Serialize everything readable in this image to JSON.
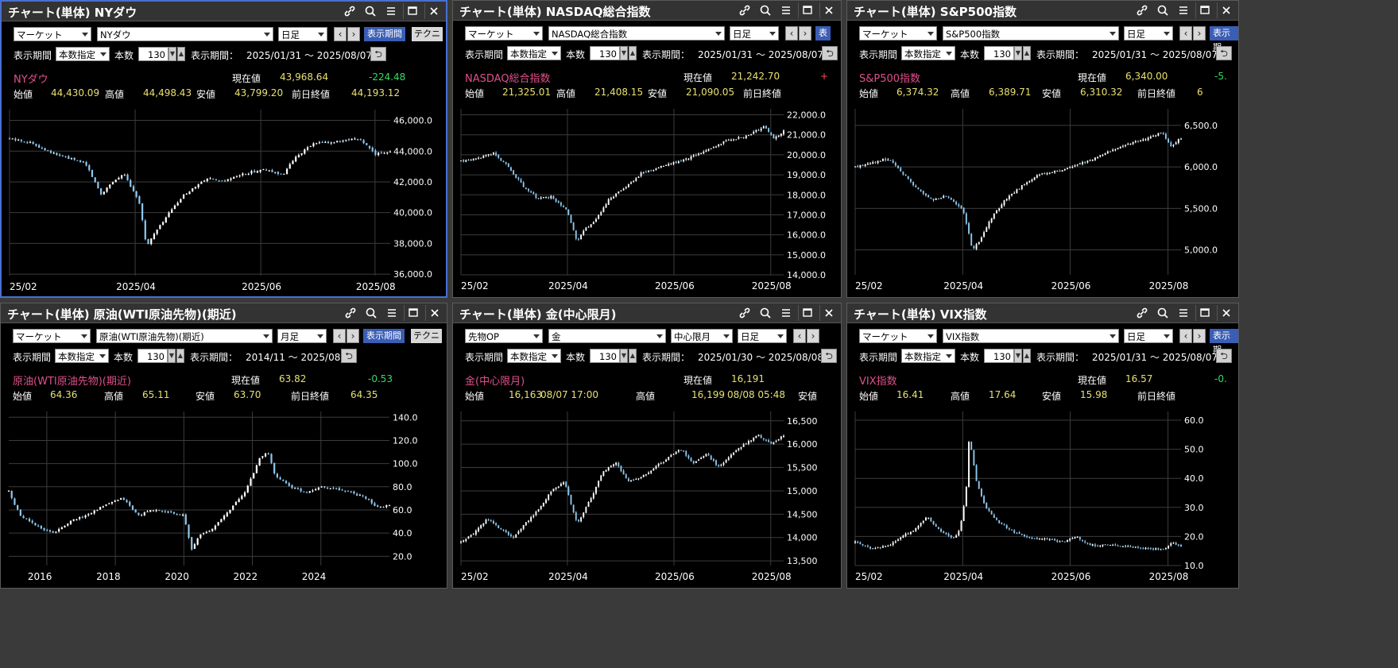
{
  "panels": [
    {
      "id": "p1",
      "title": "チャート(単体) NYダウ",
      "market": "マーケット",
      "symbol": "NYダウ",
      "period": "日足",
      "display_button": "表示期間",
      "tech_button": "テクニ",
      "period_label": "表示期間",
      "mode": "本数指定",
      "count_label": "本数",
      "count": "130",
      "range_label": "表示期間：",
      "range": "2025/01/31 ～ 2025/08/07",
      "name": "NYダウ",
      "current_label": "現在値",
      "current": "43,968.64",
      "change": "-224.48",
      "change_color": "#33dd66",
      "open_label": "始値",
      "open": "44,430.09",
      "high_label": "高値",
      "high": "44,498.43",
      "low_label": "安値",
      "low": "43,799.20",
      "prev_label": "前日終値",
      "prev": "44,193.12",
      "chart_data": {
        "type": "candlestick",
        "yticks": [
          "46,000.0",
          "44,000.0",
          "42,000.0",
          "40,000.0",
          "38,000.0",
          "36,000.0"
        ],
        "ytick_values": [
          46000,
          44000,
          42000,
          40000,
          38000,
          36000
        ],
        "ylim": [
          35900,
          46700
        ],
        "xticks": [
          "25/02",
          "2025/04",
          "2025/06",
          "2025/08"
        ],
        "xtick_pos": [
          0,
          0.33,
          0.66,
          0.96
        ],
        "anchors": [
          [
            0,
            44800
          ],
          [
            0.05,
            44600
          ],
          [
            0.12,
            43800
          ],
          [
            0.2,
            43200
          ],
          [
            0.24,
            41200
          ],
          [
            0.27,
            42000
          ],
          [
            0.3,
            42500
          ],
          [
            0.34,
            40800
          ],
          [
            0.36,
            37800
          ],
          [
            0.38,
            38600
          ],
          [
            0.42,
            40000
          ],
          [
            0.46,
            41200
          ],
          [
            0.52,
            42200
          ],
          [
            0.56,
            42000
          ],
          [
            0.6,
            42400
          ],
          [
            0.66,
            42800
          ],
          [
            0.72,
            42500
          ],
          [
            0.75,
            43600
          ],
          [
            0.8,
            44500
          ],
          [
            0.86,
            44600
          ],
          [
            0.92,
            44800
          ],
          [
            0.96,
            43800
          ],
          [
            1,
            44000
          ]
        ]
      }
    },
    {
      "id": "p2",
      "title": "チャート(単体) NASDAQ総合指数",
      "market": "マーケット",
      "symbol": "NASDAQ総合指数",
      "period": "日足",
      "display_button": "表",
      "period_label": "表示期間",
      "mode": "本数指定",
      "count_label": "本数",
      "count": "130",
      "range_label": "表示期間：",
      "range": "2025/01/31 ～ 2025/08/07",
      "name": "NASDAQ総合指数",
      "current_label": "現在値",
      "current": "21,242.70",
      "change": "+",
      "change_color": "#ff5050",
      "open_label": "始値",
      "open": "21,325.01",
      "high_label": "高値",
      "high": "21,408.15",
      "low_label": "安値",
      "low": "21,090.05",
      "prev_label": "前日終値",
      "prev": "",
      "chart_data": {
        "type": "candlestick",
        "yticks": [
          "22,000.0",
          "21,000.0",
          "20,000.0",
          "19,000.0",
          "18,000.0",
          "17,000.0",
          "16,000.0",
          "15,000.0",
          "14,000.0"
        ],
        "ytick_values": [
          22000,
          21000,
          20000,
          19000,
          18000,
          17000,
          16000,
          15000,
          14000
        ],
        "ylim": [
          14000,
          22300
        ],
        "xticks": [
          "25/02",
          "2025/04",
          "2025/06",
          "2025/08"
        ],
        "xtick_pos": [
          0,
          0.33,
          0.66,
          0.96
        ],
        "anchors": [
          [
            0,
            19700
          ],
          [
            0.05,
            19800
          ],
          [
            0.1,
            20100
          ],
          [
            0.14,
            19500
          ],
          [
            0.2,
            18300
          ],
          [
            0.24,
            17800
          ],
          [
            0.28,
            17900
          ],
          [
            0.33,
            17200
          ],
          [
            0.36,
            15600
          ],
          [
            0.38,
            16200
          ],
          [
            0.42,
            16800
          ],
          [
            0.46,
            17800
          ],
          [
            0.52,
            18500
          ],
          [
            0.56,
            19100
          ],
          [
            0.62,
            19400
          ],
          [
            0.7,
            19800
          ],
          [
            0.76,
            20200
          ],
          [
            0.82,
            20700
          ],
          [
            0.88,
            20900
          ],
          [
            0.94,
            21400
          ],
          [
            0.97,
            20800
          ],
          [
            1,
            21200
          ]
        ]
      }
    },
    {
      "id": "p3",
      "title": "チャート(単体) S&P500指数",
      "market": "マーケット",
      "symbol": "S&P500指数",
      "period": "日足",
      "display_button": "表示期",
      "period_label": "表示期間",
      "mode": "本数指定",
      "count_label": "本数",
      "count": "130",
      "range_label": "表示期間：",
      "range": "2025/01/31 ～ 2025/08/07",
      "name": "S&P500指数",
      "current_label": "現在値",
      "current": "6,340.00",
      "change": "-5.",
      "change_color": "#33dd66",
      "open_label": "始値",
      "open": "6,374.32",
      "high_label": "高値",
      "high": "6,389.71",
      "low_label": "安値",
      "low": "6,310.32",
      "prev_label": "前日終値",
      "prev": "6",
      "chart_data": {
        "type": "candlestick",
        "yticks": [
          "6,500.0",
          "6,000.0",
          "5,500.0",
          "5,000.0"
        ],
        "ytick_values": [
          6500,
          6000,
          5500,
          5000
        ],
        "ylim": [
          4700,
          6700
        ],
        "xticks": [
          "25/02",
          "2025/04",
          "2025/06",
          "2025/08"
        ],
        "xtick_pos": [
          0,
          0.33,
          0.66,
          0.96
        ],
        "anchors": [
          [
            0,
            6000
          ],
          [
            0.05,
            6050
          ],
          [
            0.1,
            6100
          ],
          [
            0.14,
            5950
          ],
          [
            0.2,
            5700
          ],
          [
            0.24,
            5600
          ],
          [
            0.28,
            5650
          ],
          [
            0.33,
            5500
          ],
          [
            0.36,
            5000
          ],
          [
            0.38,
            5100
          ],
          [
            0.42,
            5400
          ],
          [
            0.46,
            5600
          ],
          [
            0.52,
            5800
          ],
          [
            0.56,
            5900
          ],
          [
            0.62,
            5950
          ],
          [
            0.7,
            6050
          ],
          [
            0.76,
            6150
          ],
          [
            0.82,
            6250
          ],
          [
            0.9,
            6350
          ],
          [
            0.94,
            6420
          ],
          [
            0.97,
            6250
          ],
          [
            1,
            6350
          ]
        ]
      }
    },
    {
      "id": "p4",
      "title": "チャート(単体) 原油(WTI原油先物)(期近)",
      "market": "マーケット",
      "symbol": "原油(WTI原油先物)(期近)",
      "period": "月足",
      "display_button": "表示期間",
      "tech_button": "テクニ",
      "period_label": "表示期間",
      "mode": "本数指定",
      "count_label": "本数",
      "count": "130",
      "range_label": "表示期間：",
      "range": "2014/11 ～ 2025/08",
      "name": "原油(WTI原油先物)(期近)",
      "current_label": "現在値",
      "current": "63.82",
      "change": "-0.53",
      "change_color": "#33dd66",
      "open_label": "始値",
      "open": "64.36",
      "high_label": "高値",
      "high": "65.11",
      "low_label": "安値",
      "low": "63.70",
      "prev_label": "前日終値",
      "prev": "64.35",
      "chart_data": {
        "type": "candlestick",
        "yticks": [
          "140.0",
          "120.0",
          "100.0",
          "80.0",
          "60.0",
          "40.0",
          "20.0"
        ],
        "ytick_values": [
          140,
          120,
          100,
          80,
          60,
          40,
          20
        ],
        "ylim": [
          12,
          145
        ],
        "xticks": [
          "2016",
          "2018",
          "2020",
          "2022",
          "2024"
        ],
        "xtick_pos": [
          0.1,
          0.28,
          0.46,
          0.64,
          0.82
        ],
        "anchors": [
          [
            0,
            76
          ],
          [
            0.03,
            55
          ],
          [
            0.08,
            45
          ],
          [
            0.12,
            40
          ],
          [
            0.16,
            50
          ],
          [
            0.2,
            55
          ],
          [
            0.26,
            65
          ],
          [
            0.3,
            70
          ],
          [
            0.34,
            55
          ],
          [
            0.38,
            60
          ],
          [
            0.42,
            58
          ],
          [
            0.46,
            55
          ],
          [
            0.48,
            25
          ],
          [
            0.5,
            38
          ],
          [
            0.54,
            45
          ],
          [
            0.58,
            60
          ],
          [
            0.62,
            75
          ],
          [
            0.66,
            105
          ],
          [
            0.68,
            110
          ],
          [
            0.7,
            90
          ],
          [
            0.74,
            80
          ],
          [
            0.78,
            75
          ],
          [
            0.82,
            80
          ],
          [
            0.86,
            78
          ],
          [
            0.9,
            75
          ],
          [
            0.94,
            70
          ],
          [
            0.97,
            62
          ],
          [
            1,
            64
          ]
        ]
      }
    },
    {
      "id": "p5",
      "title": "チャート(単体) 金(中心限月)",
      "market": "先物OP",
      "symbol": "金",
      "contract": "中心限月",
      "period": "日足",
      "period_label": "表示期間",
      "mode": "本数指定",
      "count_label": "本数",
      "count": "130",
      "range_label": "表示期間：",
      "range": "2025/01/30 ～ 2025/08/08",
      "name": "金(中心限月)",
      "current_label": "現在値",
      "current": "16,191",
      "open_label": "始値",
      "open": "16,163",
      "open_time": "08/07 17:00",
      "high_label": "高値",
      "high": "16,199",
      "high_time": "08/08 05:48",
      "low_label": "安値",
      "chart_data": {
        "type": "candlestick",
        "yticks": [
          "16,500",
          "16,000",
          "15,500",
          "15,000",
          "14,500",
          "14,000",
          "13,500"
        ],
        "ytick_values": [
          16500,
          16000,
          15500,
          15000,
          14500,
          14000,
          13500
        ],
        "ylim": [
          13400,
          16700
        ],
        "xticks": [
          "25/02",
          "2025/04",
          "2025/06",
          "2025/08"
        ],
        "xtick_pos": [
          0,
          0.33,
          0.66,
          0.96
        ],
        "anchors": [
          [
            0,
            13900
          ],
          [
            0.04,
            14100
          ],
          [
            0.08,
            14400
          ],
          [
            0.12,
            14200
          ],
          [
            0.16,
            14000
          ],
          [
            0.2,
            14300
          ],
          [
            0.24,
            14600
          ],
          [
            0.28,
            15000
          ],
          [
            0.32,
            15200
          ],
          [
            0.36,
            14300
          ],
          [
            0.4,
            14800
          ],
          [
            0.44,
            15400
          ],
          [
            0.48,
            15600
          ],
          [
            0.52,
            15200
          ],
          [
            0.56,
            15300
          ],
          [
            0.6,
            15500
          ],
          [
            0.64,
            15700
          ],
          [
            0.68,
            15900
          ],
          [
            0.72,
            15600
          ],
          [
            0.76,
            15800
          ],
          [
            0.8,
            15500
          ],
          [
            0.84,
            15800
          ],
          [
            0.88,
            16000
          ],
          [
            0.92,
            16200
          ],
          [
            0.96,
            16000
          ],
          [
            1,
            16190
          ]
        ]
      }
    },
    {
      "id": "p6",
      "title": "チャート(単体) VIX指数",
      "market": "マーケット",
      "symbol": "VIX指数",
      "period": "日足",
      "display_button": "表示期",
      "period_label": "表示期間",
      "mode": "本数指定",
      "count_label": "本数",
      "count": "130",
      "range_label": "表示期間：",
      "range": "2025/01/31 ～ 2025/08/07",
      "name": "VIX指数",
      "current_label": "現在値",
      "current": "16.57",
      "change": "-0.",
      "change_color": "#33dd66",
      "open_label": "始値",
      "open": "16.41",
      "high_label": "高値",
      "high": "17.64",
      "low_label": "安値",
      "low": "15.98",
      "prev_label": "前日終値",
      "prev": "",
      "chart_data": {
        "type": "candlestick",
        "yticks": [
          "60.0",
          "50.0",
          "40.0",
          "30.0",
          "20.0",
          "10.0"
        ],
        "ytick_values": [
          60,
          50,
          40,
          30,
          20,
          10
        ],
        "ylim": [
          10,
          63
        ],
        "xticks": [
          "25/02",
          "2025/04",
          "2025/06",
          "2025/08"
        ],
        "xtick_pos": [
          0,
          0.33,
          0.66,
          0.96
        ],
        "anchors": [
          [
            0,
            18
          ],
          [
            0.05,
            16
          ],
          [
            0.1,
            16.5
          ],
          [
            0.14,
            20
          ],
          [
            0.18,
            22
          ],
          [
            0.22,
            27
          ],
          [
            0.26,
            22
          ],
          [
            0.3,
            19
          ],
          [
            0.32,
            22
          ],
          [
            0.34,
            35
          ],
          [
            0.35,
            55
          ],
          [
            0.37,
            40
          ],
          [
            0.4,
            30
          ],
          [
            0.44,
            25
          ],
          [
            0.48,
            22
          ],
          [
            0.52,
            20
          ],
          [
            0.56,
            19
          ],
          [
            0.6,
            19
          ],
          [
            0.64,
            18
          ],
          [
            0.68,
            20
          ],
          [
            0.72,
            17
          ],
          [
            0.78,
            17
          ],
          [
            0.84,
            16.5
          ],
          [
            0.9,
            16
          ],
          [
            0.95,
            15.5
          ],
          [
            0.97,
            18
          ],
          [
            1,
            16.5
          ]
        ]
      }
    }
  ]
}
